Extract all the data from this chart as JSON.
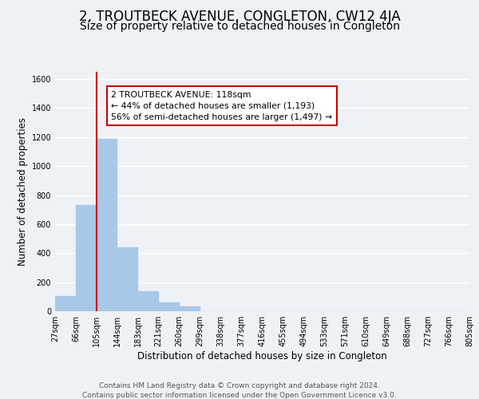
{
  "title": "2, TROUTBECK AVENUE, CONGLETON, CW12 4JA",
  "subtitle": "Size of property relative to detached houses in Congleton",
  "xlabel": "Distribution of detached houses by size in Congleton",
  "ylabel": "Number of detached properties",
  "bin_labels": [
    "27sqm",
    "66sqm",
    "105sqm",
    "144sqm",
    "183sqm",
    "221sqm",
    "260sqm",
    "299sqm",
    "338sqm",
    "377sqm",
    "416sqm",
    "455sqm",
    "494sqm",
    "533sqm",
    "571sqm",
    "610sqm",
    "649sqm",
    "688sqm",
    "727sqm",
    "766sqm",
    "805sqm"
  ],
  "bar_values": [
    105,
    730,
    1190,
    440,
    140,
    62,
    35,
    0,
    0,
    0,
    0,
    0,
    0,
    0,
    0,
    0,
    0,
    0,
    0,
    0
  ],
  "bar_color": "#a8c8e8",
  "bar_edge_color": "#a8c8e8",
  "vline_color": "#cc0000",
  "annotation_text": "2 TROUTBECK AVENUE: 118sqm\n← 44% of detached houses are smaller (1,193)\n56% of semi-detached houses are larger (1,497) →",
  "annotation_box_facecolor": "#ffffff",
  "annotation_box_edgecolor": "#cc0000",
  "ylim": [
    0,
    1650
  ],
  "yticks": [
    0,
    200,
    400,
    600,
    800,
    1000,
    1200,
    1400,
    1600
  ],
  "footer_line1": "Contains HM Land Registry data © Crown copyright and database right 2024.",
  "footer_line2": "Contains public sector information licensed under the Open Government Licence v3.0.",
  "background_color": "#eef2f7",
  "plot_background": "#eef2f7",
  "grid_color": "#ffffff",
  "title_fontsize": 12,
  "subtitle_fontsize": 10,
  "axis_label_fontsize": 8.5,
  "tick_fontsize": 7,
  "footer_fontsize": 6.5,
  "annotation_fontsize": 7.8
}
